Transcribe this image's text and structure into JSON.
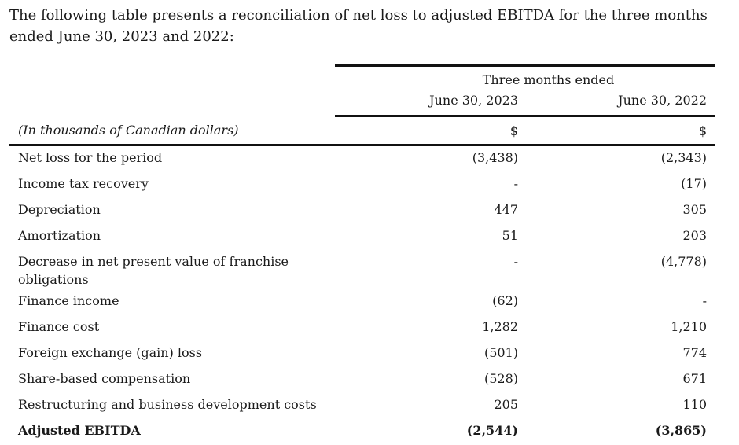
{
  "intro_text": "The following table presents a reconciliation of net loss to adjusted EBITDA for the three months ended June 30, 2023 and 2022:",
  "table": {
    "group_header": "Three months ended",
    "columns": [
      "June 30, 2023",
      "June 30, 2022"
    ],
    "units_label": "(In thousands of Canadian dollars)",
    "currency": [
      "$",
      "$"
    ],
    "rows": [
      {
        "label": "Net loss for the period",
        "v2023": "(3,438)",
        "v2022": "(2,343)"
      },
      {
        "label": "Income tax recovery",
        "v2023": "-",
        "v2022": "(17)"
      },
      {
        "label": "Depreciation",
        "v2023": "447",
        "v2022": "305"
      },
      {
        "label": "Amortization",
        "v2023": "51",
        "v2022": "203"
      },
      {
        "label": "Decrease in net present value of franchise obligations",
        "v2023": "-",
        "v2022": "(4,778)"
      },
      {
        "label": "Finance income",
        "v2023": "(62)",
        "v2022": "-"
      },
      {
        "label": "Finance cost",
        "v2023": "1,282",
        "v2022": "1,210"
      },
      {
        "label": "Foreign exchange (gain) loss",
        "v2023": "(501)",
        "v2022": "774"
      },
      {
        "label": "Share-based compensation",
        "v2023": "(528)",
        "v2022": "671"
      },
      {
        "label": "Restructuring and business development costs",
        "v2023": "205",
        "v2022": "110"
      },
      {
        "label": "Adjusted EBITDA",
        "v2023": "(2,544)",
        "v2022": "(3,865)"
      }
    ]
  }
}
